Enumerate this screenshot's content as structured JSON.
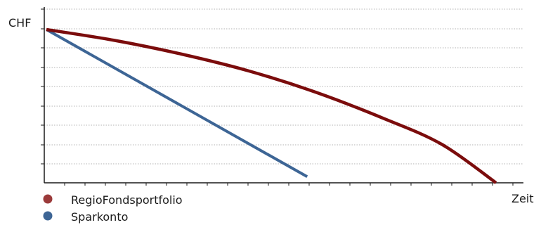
{
  "chart_data": {
    "type": "line",
    "ylabel": "CHF",
    "xlabel": "Zeit",
    "grid": true,
    "legend_position": "bottom-left",
    "xlim": [
      0,
      100
    ],
    "ylim": [
      0,
      100
    ],
    "series": [
      {
        "name": "RegioFondsportfolio",
        "color": "#7b0c0c",
        "legend_color": "#9b3a3a",
        "x": [
          0,
          15,
          30,
          45,
          60,
          75,
          88,
          100
        ],
        "values": [
          100,
          93,
          84,
          73,
          59,
          42,
          25,
          0
        ]
      },
      {
        "name": "Sparkonto",
        "color": "#3d6595",
        "legend_color": "#3d6595",
        "x": [
          0,
          58
        ],
        "values": [
          100,
          4
        ]
      }
    ]
  }
}
